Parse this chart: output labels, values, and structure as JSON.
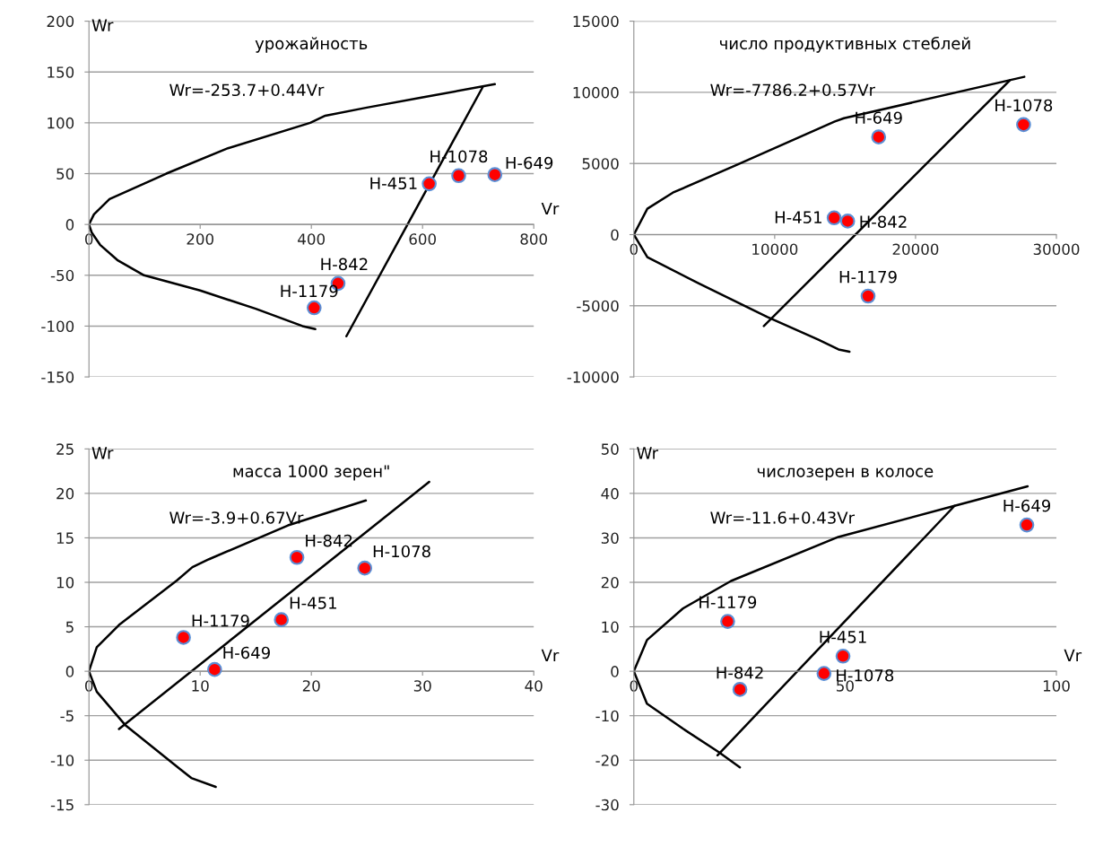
{
  "chart_data": [
    {
      "type": "scatter",
      "title": "урожайность",
      "xlabel": "Vr",
      "ylabel": "Wr",
      "xlim": [
        0,
        800
      ],
      "xticks": [
        0,
        200,
        400,
        600,
        800
      ],
      "ylim": [
        -150,
        200
      ],
      "yticks": [
        -150,
        -100,
        -50,
        0,
        50,
        100,
        150,
        200
      ],
      "grid": "y",
      "legend": false,
      "line_style": "solid",
      "series": [
        {
          "type": "line",
          "color": "#000000",
          "x": [
            407,
            384,
            300,
            200,
            99,
            51,
            20,
            5,
            0,
            9,
            37,
            139,
            250,
            398,
            425,
            500,
            600,
            730
          ],
          "values": [
            -103,
            -100,
            -83,
            -65,
            -50,
            -35,
            -20,
            -8,
            0,
            10,
            25,
            50,
            75,
            100,
            107,
            115,
            125,
            138
          ]
        },
        {
          "type": "line",
          "color": "#000000",
          "x": [
            463,
            708
          ],
          "values": [
            -110,
            135
          ]
        },
        {
          "color": "#ff0000",
          "marker": "circle",
          "x": [
            612,
            665,
            730,
            448,
            405
          ],
          "values": [
            40,
            48,
            49,
            -58,
            -82
          ]
        }
      ],
      "annotations": [
        "Wr=-253.7+0.44Vr",
        {
          "text": "H-451",
          "x": 612,
          "y": 40
        },
        {
          "text": "H-1078",
          "x": 665,
          "y": 48
        },
        {
          "text": "H-649",
          "x": 730,
          "y": 49
        },
        {
          "text": "H-842",
          "x": 448,
          "y": -58
        },
        {
          "text": "H-1179",
          "x": 405,
          "y": -82
        }
      ]
    },
    {
      "type": "scatter",
      "title": "число продуктивных стеблей",
      "xlim": [
        0,
        30000
      ],
      "xticks": [
        0,
        10000,
        20000,
        30000
      ],
      "ylim": [
        -10000,
        15000
      ],
      "yticks": [
        -10000,
        -5000,
        0,
        5000,
        10000,
        15000
      ],
      "grid": "y",
      "legend": false,
      "line_style": "solid",
      "series": [
        {
          "type": "line",
          "color": "#000000",
          "x": [
            15310,
            14530,
            13110,
            9490,
            4580,
            960,
            0,
            960,
            2770,
            7290,
            14270,
            14920,
            27720
          ],
          "values": [
            -8230,
            -8070,
            -7390,
            -5800,
            -3410,
            -1590,
            0,
            1820,
            2950,
            4890,
            7950,
            8180,
            11090
          ]
        },
        {
          "type": "line",
          "color": "#000000",
          "x": [
            9230,
            26690
          ],
          "values": [
            -6430,
            10840
          ]
        },
        {
          "color": "#ff0000",
          "marker": "circle",
          "x": [
            17380,
            27670,
            14220,
            15180,
            16630
          ],
          "values": [
            6860,
            7730,
            1180,
            950,
            -4320
          ]
        }
      ],
      "annotations": [
        "Wr=-7786.2+0.57Vr",
        {
          "text": "H-649",
          "x": 17380,
          "y": 6860
        },
        {
          "text": "H-1078",
          "x": 27670,
          "y": 7730
        },
        {
          "text": "H-451",
          "x": 14220,
          "y": 1180
        },
        {
          "text": "H-842",
          "x": 15180,
          "y": 950
        },
        {
          "text": "H-1179",
          "x": 16630,
          "y": -4320
        }
      ]
    },
    {
      "type": "scatter",
      "title": "масса 1000 зерен\"",
      "xlabel": "Vr",
      "ylabel": "Wr",
      "xlim": [
        0,
        40
      ],
      "xticks": [
        0,
        10,
        20,
        30,
        40
      ],
      "ylim": [
        -15,
        25
      ],
      "yticks": [
        -15,
        -10,
        -5,
        0,
        5,
        10,
        15,
        20,
        25
      ],
      "grid": "y",
      "legend": false,
      "line_style": "solid",
      "series": [
        {
          "type": "line",
          "color": "#000000",
          "x": [
            11.4,
            9.2,
            8.2,
            3.3,
            0.7,
            0,
            0.7,
            2.7,
            7.9,
            9.3,
            10.8,
            17.9,
            24.9
          ],
          "values": [
            -13.0,
            -12.0,
            -11.0,
            -6.1,
            -2.3,
            0,
            2.7,
            5.2,
            10.2,
            11.7,
            12.6,
            16.4,
            19.2
          ]
        },
        {
          "type": "line",
          "color": "#000000",
          "x": [
            2.7,
            30.6
          ],
          "values": [
            -6.5,
            21.3
          ]
        },
        {
          "color": "#ff0000",
          "marker": "circle",
          "x": [
            18.7,
            24.8,
            17.3,
            8.5,
            11.3
          ],
          "values": [
            12.8,
            11.6,
            5.8,
            3.8,
            0.2
          ]
        }
      ],
      "annotations": [
        "Wr=-3.9+0.67Vr",
        {
          "text": "H-842",
          "x": 18.7,
          "y": 12.8
        },
        {
          "text": "H-1078",
          "x": 24.8,
          "y": 11.6
        },
        {
          "text": "H-451",
          "x": 17.3,
          "y": 5.8
        },
        {
          "text": "H-1179",
          "x": 8.5,
          "y": 3.8
        },
        {
          "text": "H-649",
          "x": 11.3,
          "y": 0.2
        }
      ]
    },
    {
      "type": "scatter",
      "title": "числозерен в колосе",
      "xlabel": "Vr",
      "ylabel": "Wr",
      "xlim": [
        0,
        100
      ],
      "xticks": [
        0,
        50,
        100
      ],
      "ylim": [
        -30,
        50
      ],
      "yticks": [
        -30,
        -20,
        -10,
        0,
        10,
        20,
        30,
        40,
        50
      ],
      "grid": "y",
      "legend": false,
      "line_style": "solid",
      "series": [
        {
          "type": "line",
          "color": "#000000",
          "x": [
            25.1,
            20.1,
            11.6,
            3.1,
            0,
            3.1,
            11.6,
            23.0,
            48.4,
            75.9,
            93.2
          ],
          "values": [
            -21.6,
            -18.2,
            -12.9,
            -7.3,
            0,
            7.0,
            14.1,
            20.3,
            30.2,
            37.2,
            41.6
          ]
        },
        {
          "type": "line",
          "color": "#000000",
          "x": [
            19.8,
            75.9
          ],
          "values": [
            -18.9,
            37.2
          ]
        },
        {
          "color": "#ff0000",
          "marker": "circle",
          "x": [
            93.0,
            22.2,
            49.5,
            45.0,
            25.1
          ],
          "values": [
            32.9,
            11.2,
            3.4,
            -0.5,
            -4.1
          ]
        }
      ],
      "annotations": [
        "Wr=-11.6+0.43Vr",
        {
          "text": "H-649",
          "x": 93.0,
          "y": 32.9
        },
        {
          "text": "H-1179",
          "x": 22.2,
          "y": 11.2
        },
        {
          "text": "H-451",
          "x": 49.5,
          "y": 3.4
        },
        {
          "text": "H-1078",
          "x": 45.0,
          "y": -0.5
        },
        {
          "text": "H-842",
          "x": 25.1,
          "y": -4.1
        }
      ]
    }
  ]
}
